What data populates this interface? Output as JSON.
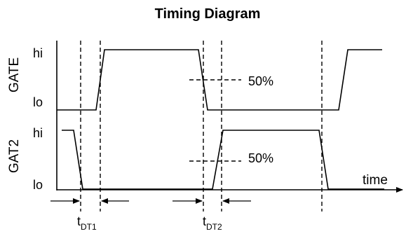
{
  "title": "Timing Diagram",
  "signals": [
    {
      "name": "GATE",
      "level_high": "hi",
      "level_low": "lo"
    },
    {
      "name": "GAT2",
      "level_high": "hi",
      "level_low": "lo"
    }
  ],
  "threshold_labels": [
    "50%",
    "50%"
  ],
  "axis_label": "time",
  "dead_times": [
    {
      "main": "t",
      "sub": "DT1"
    },
    {
      "main": "t",
      "sub": "DT2"
    }
  ]
}
